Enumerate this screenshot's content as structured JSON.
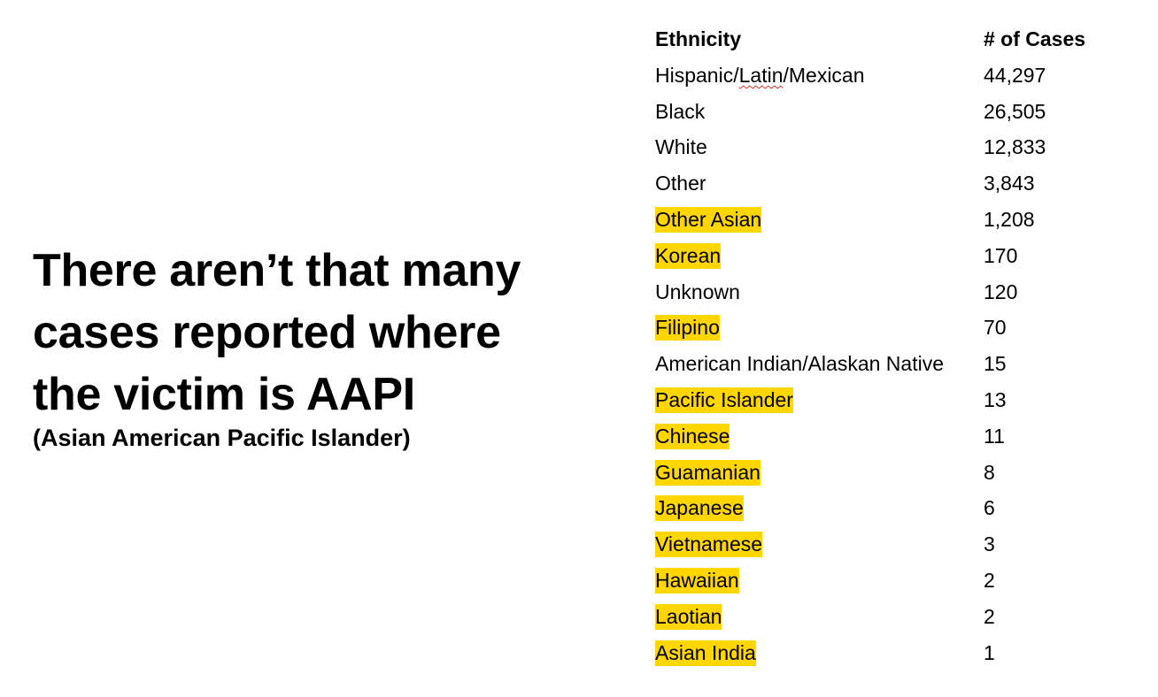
{
  "headline": {
    "lines": [
      "There aren’t that many",
      "cases reported where",
      "the victim is AAPI"
    ],
    "subtitle": "(Asian American Pacific Islander)"
  },
  "table": {
    "header": {
      "ethnicity": "Ethnicity",
      "cases": "# of Cases"
    },
    "rows": [
      {
        "ethnicity": "Hispanic/Latin/Mexican",
        "cases": "44,297",
        "highlight": false
      },
      {
        "ethnicity": "Black",
        "cases": "26,505",
        "highlight": false
      },
      {
        "ethnicity": "White",
        "cases": "12,833",
        "highlight": false
      },
      {
        "ethnicity": "Other",
        "cases": "3,843",
        "highlight": false
      },
      {
        "ethnicity": "Other Asian",
        "cases": "1,208",
        "highlight": true
      },
      {
        "ethnicity": "Korean",
        "cases": "170",
        "highlight": true
      },
      {
        "ethnicity": "Unknown",
        "cases": "120",
        "highlight": false
      },
      {
        "ethnicity": "Filipino",
        "cases": "70",
        "highlight": true
      },
      {
        "ethnicity": "American Indian/Alaskan Native",
        "cases": "15",
        "highlight": false
      },
      {
        "ethnicity": "Pacific Islander",
        "cases": "13",
        "highlight": true
      },
      {
        "ethnicity": "Chinese",
        "cases": "11",
        "highlight": true
      },
      {
        "ethnicity": "Guamanian",
        "cases": "8",
        "highlight": true
      },
      {
        "ethnicity": "Japanese",
        "cases": "6",
        "highlight": true
      },
      {
        "ethnicity": "Vietnamese",
        "cases": "3",
        "highlight": true
      },
      {
        "ethnicity": "Hawaiian",
        "cases": "2",
        "highlight": true
      },
      {
        "ethnicity": "Laotian",
        "cases": "2",
        "highlight": true
      },
      {
        "ethnicity": "Asian India",
        "cases": "1",
        "highlight": true
      }
    ]
  },
  "colors": {
    "highlight": "#ffd600",
    "spellcheck_underline": "#d93025",
    "text": "#000000",
    "background": "#ffffff"
  }
}
